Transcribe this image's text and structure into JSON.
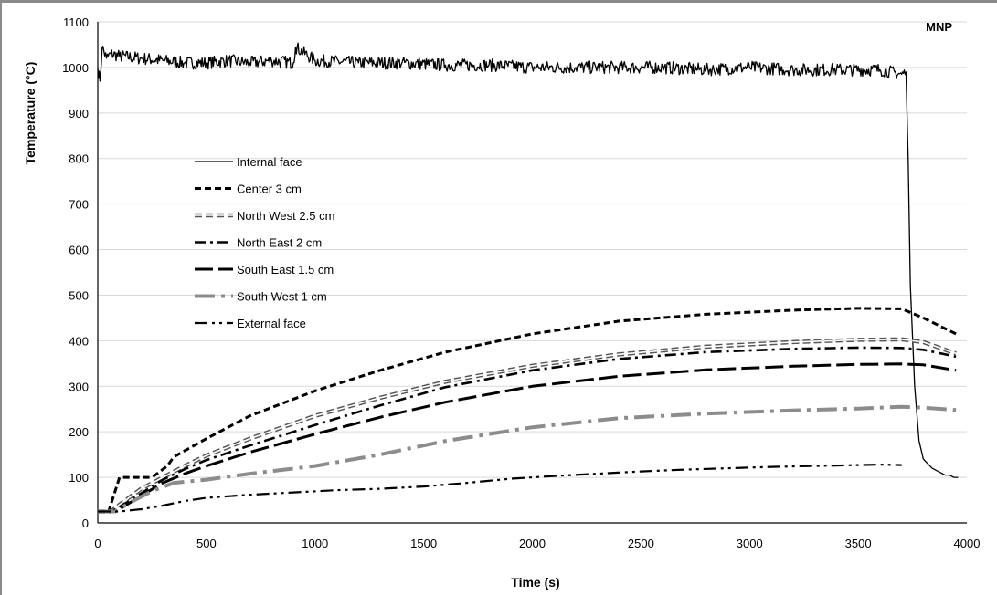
{
  "chart_data": {
    "type": "line",
    "panel_label": "MNP",
    "xlabel": "Time (s)",
    "ylabel": "Temperature (°C)",
    "xlim": [
      0,
      4000
    ],
    "ylim": [
      0,
      1100
    ],
    "xticks": [
      0,
      500,
      1000,
      1500,
      2000,
      2500,
      3000,
      3500,
      4000
    ],
    "yticks": [
      0,
      100,
      200,
      300,
      400,
      500,
      600,
      700,
      800,
      900,
      1000,
      1100
    ],
    "grid": "horizontal",
    "legend_position": "upper-left inside plot",
    "series": [
      {
        "name": "Internal face",
        "style": "solid",
        "color": "#000000",
        "x": [
          0,
          10,
          20,
          40,
          60,
          100,
          200,
          300,
          400,
          500,
          600,
          700,
          800,
          900,
          910,
          1000,
          1200,
          1400,
          1600,
          1800,
          2000,
          2200,
          2400,
          2600,
          2800,
          3000,
          3200,
          3400,
          3600,
          3700,
          3720,
          3730,
          3740,
          3760,
          3780,
          3800,
          3820,
          3830,
          3840,
          3860,
          3880,
          3900,
          3920,
          3940,
          3960
        ],
        "y": [
          1000,
          970,
          1045,
          1020,
          1030,
          1025,
          1020,
          1015,
          1010,
          1010,
          1015,
          1010,
          1015,
          1010,
          1045,
          1015,
          1010,
          1010,
          1005,
          1005,
          1000,
          1000,
          1000,
          1000,
          995,
          1000,
          995,
          995,
          995,
          985,
          990,
          800,
          520,
          300,
          180,
          140,
          130,
          125,
          120,
          115,
          110,
          105,
          105,
          100,
          100
        ]
      },
      {
        "name": "Center 3 cm",
        "style": "short-dash",
        "color": "#000000",
        "x": [
          0,
          50,
          100,
          150,
          250,
          320,
          350,
          500,
          700,
          1000,
          1300,
          1600,
          2000,
          2400,
          2800,
          3200,
          3500,
          3700,
          3800,
          3950
        ],
        "y": [
          25,
          25,
          100,
          100,
          100,
          125,
          145,
          185,
          235,
          290,
          335,
          375,
          415,
          443,
          458,
          467,
          471,
          470,
          450,
          415
        ]
      },
      {
        "name": "North West 2.5 cm",
        "style": "double-line-dash",
        "color": "#555555",
        "x": [
          0,
          60,
          100,
          200,
          300,
          400,
          500,
          700,
          1000,
          1300,
          1600,
          2000,
          2400,
          2800,
          3200,
          3500,
          3700,
          3800,
          3950
        ],
        "y": [
          25,
          25,
          40,
          75,
          100,
          125,
          148,
          185,
          235,
          275,
          310,
          345,
          370,
          387,
          397,
          402,
          403,
          397,
          372
        ]
      },
      {
        "name": "North East 2 cm",
        "style": "dash-dot",
        "color": "#000000",
        "x": [
          0,
          60,
          100,
          200,
          300,
          400,
          500,
          700,
          1000,
          1300,
          1600,
          2000,
          2400,
          2800,
          3200,
          3500,
          3700,
          3800,
          3950
        ],
        "y": [
          25,
          25,
          35,
          65,
          95,
          118,
          138,
          170,
          215,
          258,
          298,
          335,
          360,
          375,
          382,
          385,
          384,
          380,
          365
        ]
      },
      {
        "name": "South East 1.5 cm",
        "style": "long-dash",
        "color": "#000000",
        "x": [
          0,
          60,
          100,
          200,
          300,
          400,
          500,
          700,
          1000,
          1300,
          1600,
          2000,
          2400,
          2800,
          3200,
          3500,
          3700,
          3800,
          3950
        ],
        "y": [
          25,
          25,
          30,
          60,
          88,
          108,
          125,
          155,
          195,
          232,
          265,
          300,
          322,
          336,
          344,
          348,
          349,
          347,
          335
        ]
      },
      {
        "name": "South West 1 cm",
        "style": "long-dash-dot-gray",
        "color": "#8c8c8c",
        "x": [
          0,
          80,
          150,
          250,
          350,
          500,
          700,
          1000,
          1300,
          1600,
          2000,
          2400,
          2800,
          3200,
          3500,
          3700,
          3800,
          3950
        ],
        "y": [
          25,
          25,
          45,
          70,
          88,
          95,
          108,
          125,
          150,
          180,
          210,
          230,
          240,
          247,
          251,
          255,
          253,
          248
        ]
      },
      {
        "name": "External face",
        "style": "dash-dot-dot",
        "color": "#000000",
        "x": [
          0,
          100,
          200,
          300,
          400,
          500,
          700,
          900,
          1100,
          1300,
          1500,
          1700,
          1900,
          2100,
          2300,
          2500,
          2700,
          2900,
          3100,
          3300,
          3500,
          3600,
          3700
        ],
        "y": [
          25,
          25,
          30,
          38,
          48,
          55,
          62,
          67,
          72,
          75,
          80,
          88,
          97,
          103,
          108,
          113,
          117,
          120,
          123,
          125,
          127,
          128,
          127
        ]
      }
    ]
  }
}
